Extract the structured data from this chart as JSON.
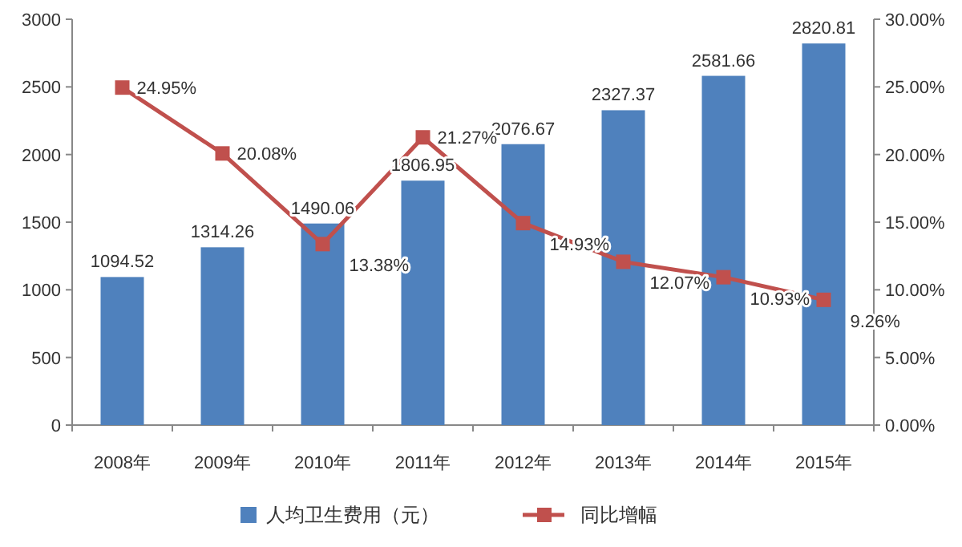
{
  "chart_data": {
    "type": "bar",
    "categories": [
      "2008年",
      "2009年",
      "2010年",
      "2011年",
      "2012年",
      "2013年",
      "2014年",
      "2015年"
    ],
    "series": [
      {
        "name": "人均卫生费用（元）",
        "color": "#4f81bd",
        "values": [
          1094.52,
          1314.26,
          1490.06,
          1806.95,
          2076.67,
          2327.37,
          2581.66,
          2820.81
        ],
        "value_labels": [
          "1094.52",
          "1314.26",
          "1490.06",
          "1806.95",
          "2076.67",
          "2327.37",
          "2581.66",
          "2820.81"
        ]
      },
      {
        "name": "同比增幅",
        "type": "line",
        "axis": "y2",
        "color": "#c0504d",
        "marker": "square",
        "values": [
          24.95,
          20.08,
          13.38,
          21.27,
          14.93,
          12.07,
          10.93,
          9.26
        ],
        "value_labels": [
          "24.95%",
          "20.08%",
          "13.38%",
          "21.27%",
          "14.93%",
          "12.07%",
          "10.93%",
          "9.26%"
        ]
      }
    ],
    "ylim": [
      0,
      3000
    ],
    "yticks": [
      0,
      500,
      1000,
      1500,
      2000,
      2500,
      3000
    ],
    "y2lim": [
      0,
      30
    ],
    "y2ticks": [
      {
        "value": 0,
        "label": "0.00%"
      },
      {
        "value": 5,
        "label": "5.00%"
      },
      {
        "value": 10,
        "label": "10.00%"
      },
      {
        "value": 15,
        "label": "15.00%"
      },
      {
        "value": 20,
        "label": "20.00%"
      },
      {
        "value": 25,
        "label": "25.00%"
      },
      {
        "value": 30,
        "label": "30.00%"
      }
    ],
    "legend": "bottom",
    "grid": false
  }
}
